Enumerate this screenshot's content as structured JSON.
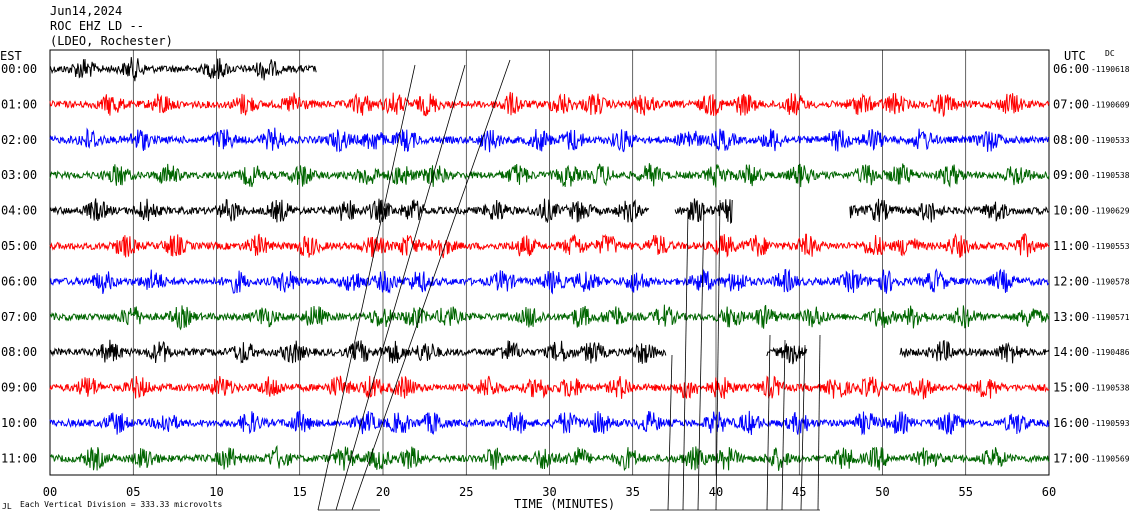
{
  "header": {
    "date": "Jun14,2024",
    "station": "ROC EHZ LD --",
    "network": "(LDEO, Rochester)"
  },
  "chart_data": {
    "type": "line",
    "left_axis_label": "EST",
    "right_axis_label": "UTC",
    "right_axis_sublabel": "DC",
    "xlabel": "TIME (MINUTES)",
    "xlim": [
      0,
      60
    ],
    "x_ticks": [
      "00",
      "05",
      "10",
      "15",
      "20",
      "25",
      "30",
      "35",
      "40",
      "45",
      "50",
      "55",
      "60"
    ],
    "footer_note": "Each Vertical Division = 333.33 microvolts",
    "footer_mark": "JL",
    "colors": {
      "black": "#000000",
      "red": "#ff0000",
      "blue": "#0000ff",
      "green": "#006600"
    },
    "rows": [
      {
        "est": "00:00",
        "utc": "06:00",
        "dc": "-1190618",
        "color": "black"
      },
      {
        "est": "01:00",
        "utc": "07:00",
        "dc": "-1190609",
        "color": "red"
      },
      {
        "est": "02:00",
        "utc": "08:00",
        "dc": "-1190533",
        "color": "blue"
      },
      {
        "est": "03:00",
        "utc": "09:00",
        "dc": "-1190538",
        "color": "green"
      },
      {
        "est": "04:00",
        "utc": "10:00",
        "dc": "-1190629",
        "color": "black"
      },
      {
        "est": "05:00",
        "utc": "11:00",
        "dc": "-1190553",
        "color": "red"
      },
      {
        "est": "06:00",
        "utc": "12:00",
        "dc": "-1190578",
        "color": "blue"
      },
      {
        "est": "07:00",
        "utc": "13:00",
        "dc": "-1190571",
        "color": "green"
      },
      {
        "est": "08:00",
        "utc": "14:00",
        "dc": "-1190486",
        "color": "black"
      },
      {
        "est": "09:00",
        "utc": "15:00",
        "dc": "-1190538",
        "color": "red"
      },
      {
        "est": "10:00",
        "utc": "16:00",
        "dc": "-1190593",
        "color": "blue"
      },
      {
        "est": "11:00",
        "utc": "17:00",
        "dc": "-1190569",
        "color": "green"
      }
    ]
  }
}
